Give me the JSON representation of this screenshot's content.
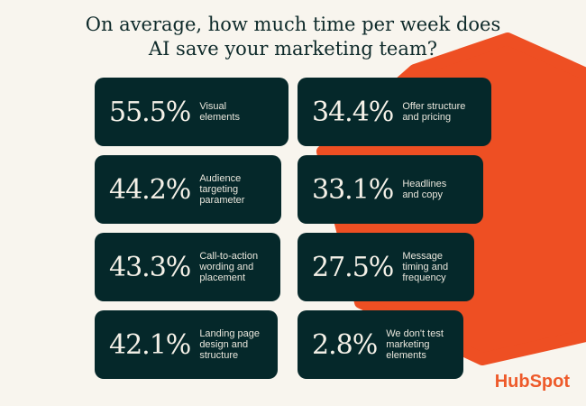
{
  "title_line1": "On average, how much time per week does",
  "title_line2": "AI save your marketing team?",
  "colors": {
    "background": "#f8f5ee",
    "card": "#05282a",
    "accent": "#ee5a2a"
  },
  "stats": [
    {
      "value": "55.5%",
      "label": [
        "Visual",
        "elements"
      ]
    },
    {
      "value": "34.4%",
      "label": [
        "Offer structure",
        "and pricing"
      ]
    },
    {
      "value": "44.2%",
      "label": [
        "Audience",
        "targeting",
        "parameter"
      ]
    },
    {
      "value": "33.1%",
      "label": [
        "Headlines",
        "and copy"
      ]
    },
    {
      "value": "43.3%",
      "label": [
        "Call-to-action",
        "wording and",
        "placement"
      ]
    },
    {
      "value": "27.5%",
      "label": [
        "Message",
        "timing and",
        "frequency"
      ]
    },
    {
      "value": "42.1%",
      "label": [
        "Landing page",
        "design and",
        "structure"
      ]
    },
    {
      "value": "2.8%",
      "label": [
        "We don't test",
        "marketing",
        "elements"
      ]
    }
  ],
  "logo": "HubSpot"
}
